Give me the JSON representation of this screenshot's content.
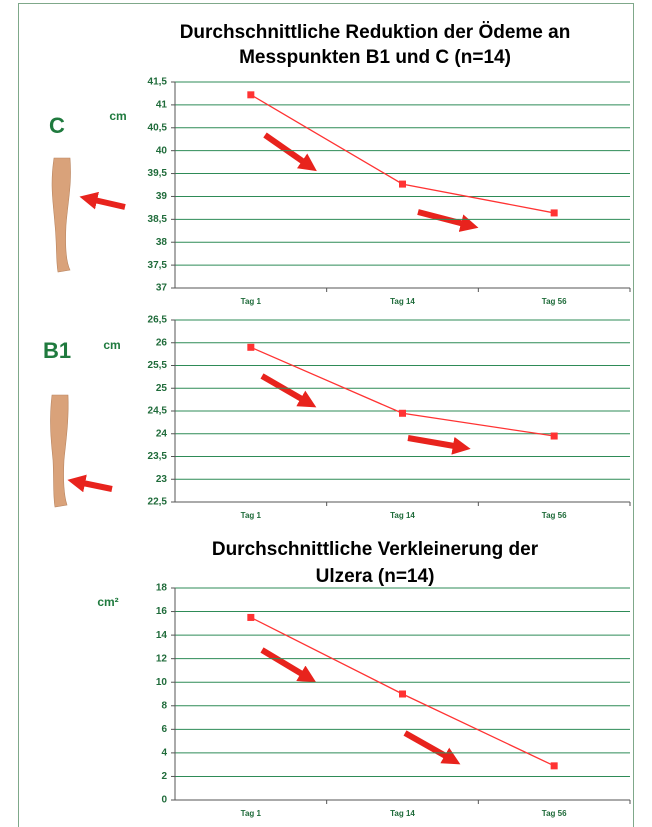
{
  "chart_data": [
    {
      "type": "line",
      "title": [
        "Durchschnittliche Reduktion der Ödeme an",
        "Messpunkten B1 und C (n=14)"
      ],
      "side_label": "C",
      "y_unit": "cm",
      "categories": [
        "Tag 1",
        "Tag 14",
        "Tag 56"
      ],
      "series": [
        {
          "color": "#ff3333",
          "values": [
            41.22,
            39.27,
            38.64
          ]
        }
      ],
      "ylim": [
        37,
        41.5
      ],
      "yticks": [
        37,
        {
          "value": 37.5,
          "label": "37,5"
        },
        38,
        {
          "value": 38.5,
          "label": "38,5"
        },
        39,
        {
          "value": 39.5,
          "label": "39,5"
        },
        40,
        {
          "value": 40.5,
          "label": "40,5"
        },
        41,
        {
          "value": 41.5,
          "label": "41,5"
        }
      ],
      "grid": true
    },
    {
      "type": "line",
      "side_label": "B1",
      "y_unit": "cm",
      "categories": [
        "Tag 1",
        "Tag 14",
        "Tag 56"
      ],
      "series": [
        {
          "color": "#ff3333",
          "values": [
            25.9,
            24.45,
            23.95
          ]
        }
      ],
      "ylim": [
        22.5,
        26.5
      ],
      "yticks": [
        {
          "value": 22.5,
          "label": "22,5"
        },
        23,
        {
          "value": 23.5,
          "label": "23,5"
        },
        24,
        {
          "value": 24.5,
          "label": "24,5"
        },
        25,
        {
          "value": 25.5,
          "label": "25,5"
        },
        26,
        {
          "value": 26.5,
          "label": "26,5"
        }
      ],
      "grid": true
    },
    {
      "type": "line",
      "title": [
        "Durchschnittliche Verkleinerung der",
        "Ulzera (n=14)"
      ],
      "y_unit": "cm²",
      "categories": [
        "Tag 1",
        "Tag 14",
        "Tag 56"
      ],
      "series": [
        {
          "color": "#ff3333",
          "values": [
            15.5,
            9,
            2.9
          ]
        }
      ],
      "ylim": [
        0,
        18
      ],
      "yticks": [
        0,
        2,
        4,
        6,
        8,
        10,
        12,
        14,
        16,
        18
      ],
      "grid": true
    }
  ]
}
